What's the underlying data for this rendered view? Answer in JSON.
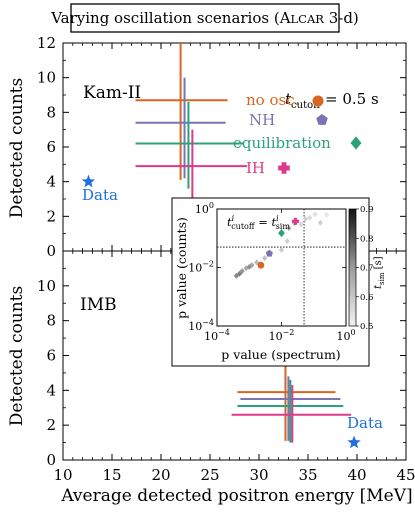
{
  "chart_data": {
    "type": "scatter",
    "title": "Varying oscillation scenarios (ALCAR 3-d)",
    "title_parts": {
      "lead": "Varying oscillation scenarios (",
      "sc_a": "A",
      "sc_rest": "LCAR",
      "tail": " 3-d)"
    },
    "xlabel": "Average detected positron energy [MeV]",
    "xlim": [
      10,
      45
    ],
    "xticks": [
      "10",
      "15",
      "20",
      "25",
      "30",
      "35",
      "40",
      "45"
    ],
    "cutoff_label": {
      "t": "t",
      "sub": "cutoff",
      "eq": " = 0.5 s"
    },
    "panels": [
      {
        "id": "kam",
        "label": "Kam-II",
        "ylabel": "Detected counts",
        "ylim": [
          0,
          12
        ],
        "yticks": [
          "0",
          "2",
          "4",
          "6",
          "8",
          "10",
          "12"
        ],
        "data_point": {
          "label": "Data",
          "x": 12.6,
          "y": 4.0
        },
        "series": [
          {
            "name": "no osc.",
            "marker": "circle",
            "color": "#d9661f",
            "x": 22.0,
            "xerr": [
              17.4,
              26.8
            ],
            "y": 8.7,
            "yerr": [
              4.1,
              12.0
            ]
          },
          {
            "name": "NH",
            "marker": "pentagon",
            "color": "#7b73b6",
            "x": 22.4,
            "xerr": [
              17.4,
              26.6
            ],
            "y": 7.4,
            "yerr": [
              4.2,
              10.0
            ]
          },
          {
            "name": "equilibration",
            "marker": "diamond",
            "color": "#2aa37c",
            "x": 22.8,
            "xerr": [
              17.4,
              28.4
            ],
            "y": 6.2,
            "yerr": [
              3.6,
              8.6
            ]
          },
          {
            "name": "IH",
            "marker": "cross",
            "color": "#dd3a8c",
            "x": 23.2,
            "xerr": [
              17.4,
              28.8
            ],
            "y": 4.9,
            "yerr": [
              2.8,
              7.0
            ]
          }
        ]
      },
      {
        "id": "imb",
        "label": "IMB",
        "ylabel": "Detected counts",
        "ylim": [
          0,
          12
        ],
        "yticks": [
          "0",
          "2",
          "4",
          "6",
          "8",
          "10"
        ],
        "data_point": {
          "label": "Data",
          "x": 39.7,
          "y": 1.0
        },
        "series": [
          {
            "name": "no osc.",
            "color": "#d9661f",
            "x": 32.7,
            "xerr": [
              27.8,
              37.8
            ],
            "y": 3.9,
            "yerr": [
              1.1,
              5.7
            ]
          },
          {
            "name": "NH",
            "color": "#7b73b6",
            "x": 33.0,
            "xerr": [
              28.1,
              38.3
            ],
            "y": 3.5,
            "yerr": [
              1.1,
              4.8
            ]
          },
          {
            "name": "equilibration",
            "color": "#2aa37c",
            "x": 33.2,
            "xerr": [
              27.8,
              38.6
            ],
            "y": 3.1,
            "yerr": [
              1.0,
              4.6
            ]
          },
          {
            "name": "IH",
            "color": "#dd3a8c",
            "x": 33.4,
            "xerr": [
              27.2,
              39.4
            ],
            "y": 2.6,
            "yerr": [
              1.0,
              4.3
            ]
          }
        ]
      }
    ],
    "inset": {
      "type": "scatter",
      "xlabel": "p value (spectrum)",
      "ylabel": "p value (counts)",
      "xscale": "log",
      "yscale": "log",
      "xlim": [
        0.0001,
        1
      ],
      "ylim": [
        0.0001,
        1
      ],
      "xticks": [
        {
          "base": "10",
          "exp": "−4"
        },
        {
          "base": "10",
          "exp": "−2"
        },
        {
          "base": "10",
          "exp": "0"
        }
      ],
      "yticks": [
        {
          "base": "10",
          "exp": "−4"
        },
        {
          "base": "10",
          "exp": "−2"
        },
        {
          "base": "10",
          "exp": "0"
        }
      ],
      "annotation": {
        "t": "t",
        "sup": "i",
        "sub1": "cutoff",
        "eq": " = ",
        "t2": "t",
        "sup2": "i",
        "sub2": "sim"
      },
      "threshold_lines": {
        "x": 0.05,
        "y": 0.05
      },
      "colorbar": {
        "label_t": "t",
        "label_sub": "sim",
        "label_unit": " [s]",
        "ticks": [
          "0.5",
          "0.6",
          "0.7",
          "0.8",
          "0.9"
        ],
        "range": [
          0.5,
          0.9
        ]
      },
      "grey_points": [
        {
          "x": 0.0004,
          "y": 0.0052,
          "t": 0.68
        },
        {
          "x": 0.0005,
          "y": 0.0061,
          "t": 0.7
        },
        {
          "x": 0.0006,
          "y": 0.0075,
          "t": 0.66
        },
        {
          "x": 0.0008,
          "y": 0.0094,
          "t": 0.62
        },
        {
          "x": 0.001,
          "y": 0.0105,
          "t": 0.67
        },
        {
          "x": 0.0012,
          "y": 0.0121,
          "t": 0.63
        },
        {
          "x": 0.0017,
          "y": 0.015,
          "t": 0.59
        },
        {
          "x": 0.003,
          "y": 0.021,
          "t": 0.58
        },
        {
          "x": 0.01,
          "y": 0.04,
          "t": 0.56
        },
        {
          "x": 0.015,
          "y": 0.08,
          "t": 0.55
        },
        {
          "x": 0.017,
          "y": 0.22,
          "t": 0.6
        },
        {
          "x": 0.025,
          "y": 0.33,
          "t": 0.58
        },
        {
          "x": 0.04,
          "y": 0.3,
          "t": 0.54
        },
        {
          "x": 0.055,
          "y": 0.46,
          "t": 0.55
        },
        {
          "x": 0.075,
          "y": 0.5,
          "t": 0.53
        },
        {
          "x": 0.11,
          "y": 0.66,
          "t": 0.52
        },
        {
          "x": 0.16,
          "y": 0.34,
          "t": 0.55
        },
        {
          "x": 0.25,
          "y": 0.63,
          "t": 0.51
        }
      ],
      "colored_points": [
        {
          "name": "no osc.",
          "marker": "circle",
          "color": "#d9661f",
          "x": 0.0023,
          "y": 0.012
        },
        {
          "name": "NH",
          "marker": "pentagon",
          "color": "#7b73b6",
          "x": 0.0042,
          "y": 0.03
        },
        {
          "name": "equilibration",
          "marker": "diamond",
          "color": "#2aa37c",
          "x": 0.01,
          "y": 0.15
        },
        {
          "name": "IH",
          "marker": "cross",
          "color": "#dd3a8c",
          "x": 0.027,
          "y": 0.38
        }
      ]
    }
  },
  "colors": {
    "data_star": "#1f6fe0",
    "axis": "#000000"
  }
}
